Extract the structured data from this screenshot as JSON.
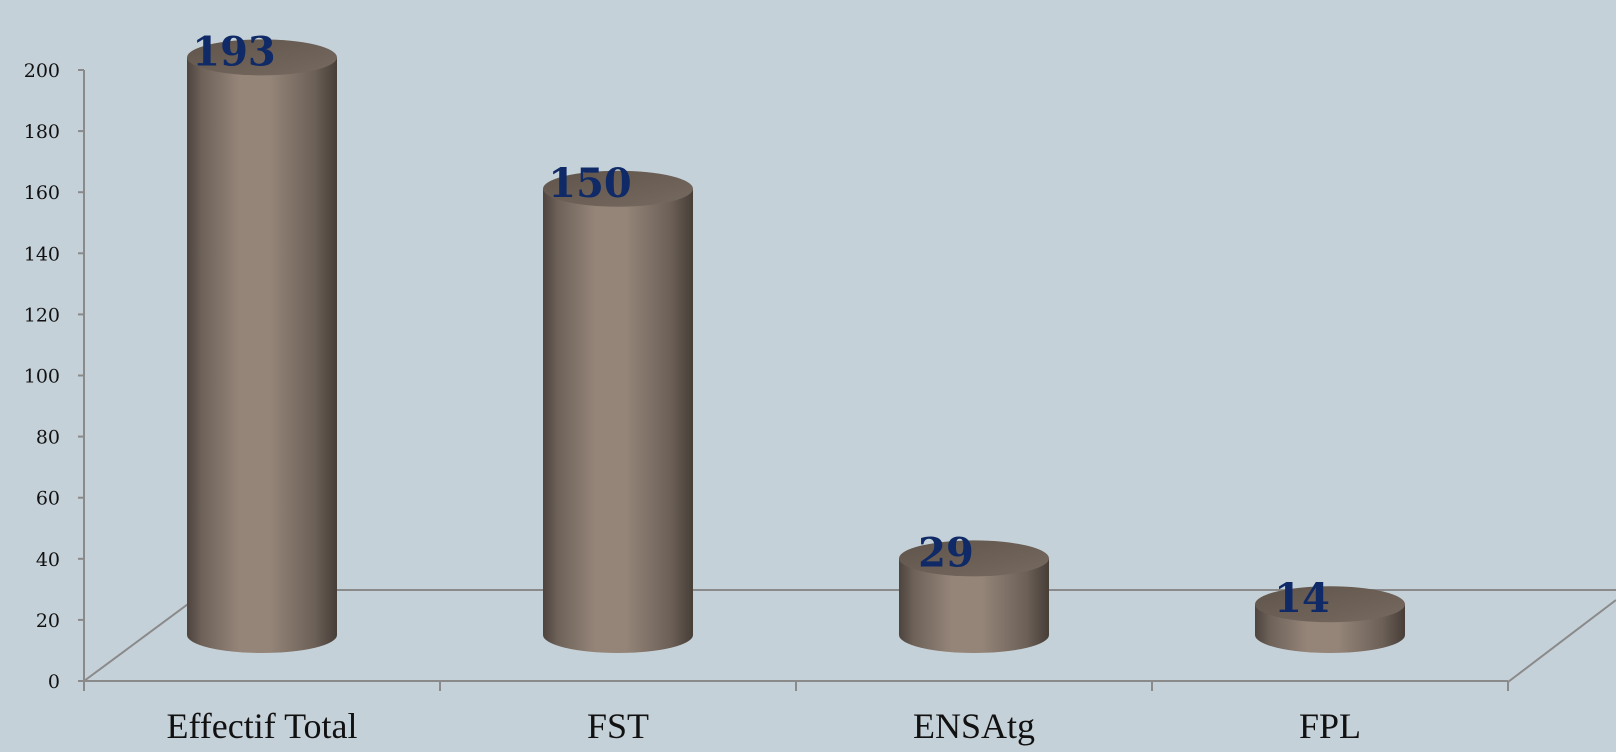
{
  "chart_data": {
    "type": "bar",
    "style": "3d-cylinder",
    "categories": [
      "Effectif Total",
      "FST",
      "ENSAtg",
      "FPL"
    ],
    "values": [
      193,
      150,
      29,
      14
    ],
    "data_labels": [
      "193",
      "150",
      "29",
      "14"
    ],
    "y_ticks": [
      0,
      20,
      40,
      60,
      80,
      100,
      120,
      140,
      160,
      180,
      200
    ],
    "ylim": [
      0,
      200
    ],
    "grid": false,
    "legend": "none",
    "colors": {
      "background": "#c5d1d8",
      "bar_body": "#8f7f73",
      "bar_top": "#6d6157",
      "data_label": "#0f2a66",
      "axis": "#8a8a8a"
    }
  }
}
